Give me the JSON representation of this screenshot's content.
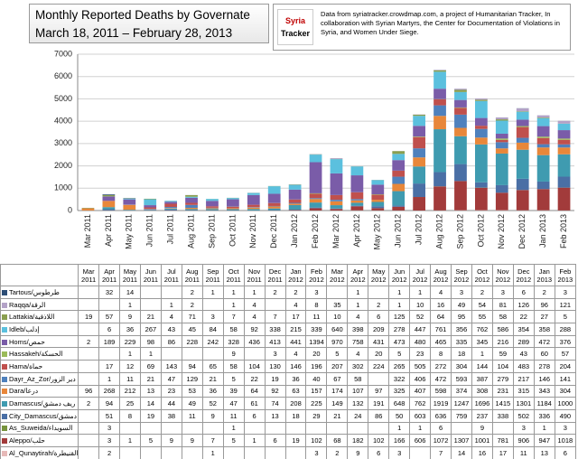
{
  "chart_data": {
    "type": "bar",
    "stacked": true,
    "title": "Monthly Reported Deaths by Governate",
    "subtitle": "March 18, 2011 – February 28, 2013",
    "source": "Data from syriatracker.crowdmap.com, a project of Humanitarian Tracker, In collaboration with Syrian Martyrs, the Center for Documentation of Violations in Syria, and Women Under Siege.",
    "logo": [
      "Syria",
      "Tracker"
    ],
    "categories": [
      "Mar 2011",
      "Apr 2011",
      "May 2011",
      "Jun 2011",
      "Jul 2011",
      "Aug 2011",
      "Sep 2011",
      "Oct 2011",
      "Nov 2011",
      "Dec 2011",
      "Jan 2012",
      "Feb 2012",
      "Mar 2012",
      "Apr 2012",
      "May 2012",
      "Jun 2012",
      "Jul 2012",
      "Aug 2012",
      "Sep 2012",
      "Oct 2012",
      "Nov 2012",
      "Dec 2012",
      "Jan 2013",
      "Feb 2013"
    ],
    "ylim": [
      0,
      7000
    ],
    "yticks": [
      0,
      1000,
      2000,
      3000,
      4000,
      5000,
      6000,
      7000
    ],
    "grid": true,
    "series": [
      {
        "name": "Tartous/طرطوس",
        "color": "#2c4d75",
        "values": [
          null,
          32,
          14,
          null,
          null,
          2,
          1,
          1,
          1,
          2,
          2,
          3,
          null,
          1,
          null,
          1,
          1,
          4,
          3,
          2,
          3,
          6,
          2,
          3
        ]
      },
      {
        "name": "Raqqa/الرقة",
        "color": "#b3a2c7",
        "values": [
          null,
          null,
          1,
          null,
          1,
          2,
          null,
          1,
          4,
          null,
          4,
          8,
          35,
          1,
          2,
          1,
          10,
          16,
          49,
          54,
          81,
          126,
          96,
          121
        ]
      },
      {
        "name": "Lattakia/اللاذقية",
        "color": "#8a9f4f",
        "values": [
          19,
          57,
          9,
          21,
          4,
          71,
          3,
          7,
          4,
          7,
          17,
          11,
          10,
          4,
          6,
          125,
          52,
          64,
          95,
          55,
          58,
          22,
          27,
          5
        ]
      },
      {
        "name": "Idleb/إدلب",
        "color": "#5bc0de",
        "values": [
          null,
          6,
          36,
          267,
          43,
          45,
          84,
          58,
          92,
          338,
          215,
          339,
          640,
          398,
          209,
          278,
          447,
          761,
          356,
          762,
          586,
          354,
          358,
          288
        ]
      },
      {
        "name": "Homs/حمص",
        "color": "#7a5ca8",
        "values": [
          2,
          189,
          229,
          98,
          86,
          228,
          242,
          328,
          436,
          413,
          441,
          1394,
          970,
          758,
          431,
          473,
          480,
          465,
          335,
          345,
          216,
          289,
          472,
          376
        ]
      },
      {
        "name": "Hassakeh/الحسكة",
        "color": "#9bbb59",
        "values": [
          null,
          null,
          1,
          1,
          null,
          null,
          null,
          9,
          null,
          3,
          4,
          20,
          5,
          4,
          20,
          5,
          23,
          8,
          18,
          1,
          59,
          43,
          60,
          57
        ]
      },
      {
        "name": "Hama/حماة",
        "color": "#c0504d",
        "values": [
          null,
          17,
          12,
          69,
          143,
          94,
          65,
          58,
          104,
          130,
          146,
          196,
          207,
          302,
          224,
          265,
          505,
          272,
          304,
          144,
          104,
          483,
          278,
          204
        ]
      },
      {
        "name": "Dayr_Az_Zor/دير الزور",
        "color": "#4f81bd",
        "values": [
          null,
          1,
          11,
          21,
          47,
          129,
          21,
          5,
          22,
          19,
          36,
          40,
          67,
          58,
          null,
          322,
          406,
          472,
          593,
          387,
          279,
          217,
          146,
          141
        ]
      },
      {
        "name": "Dara/درعا",
        "color": "#e8873a",
        "values": [
          96,
          268,
          212,
          13,
          23,
          53,
          36,
          39,
          64,
          92,
          63,
          157,
          174,
          107,
          97,
          325,
          407,
          598,
          374,
          308,
          231,
          315,
          343,
          304
        ]
      },
      {
        "name": "Damascus/ريف دمشق",
        "color": "#3f9bb0",
        "values": [
          2,
          94,
          25,
          14,
          44,
          49,
          52,
          47,
          61,
          74,
          208,
          225,
          149,
          132,
          191,
          648,
          762,
          1919,
          1247,
          1696,
          1415,
          1301,
          1184,
          1000
        ]
      },
      {
        "name": "City_Damascus/دمشق",
        "color": "#4a6fa5",
        "values": [
          null,
          51,
          8,
          19,
          38,
          11,
          9,
          11,
          6,
          13,
          18,
          29,
          21,
          24,
          86,
          50,
          603,
          636,
          759,
          237,
          338,
          502,
          336,
          490
        ]
      },
      {
        "name": "As_Suweida/السويداء",
        "color": "#77933c",
        "values": [
          null,
          3,
          null,
          null,
          null,
          null,
          null,
          1,
          null,
          null,
          null,
          null,
          null,
          null,
          null,
          1,
          1,
          6,
          null,
          9,
          null,
          3,
          1,
          3
        ]
      },
      {
        "name": "Aleppo/حلب",
        "color": "#a23b3b",
        "values": [
          null,
          3,
          1,
          5,
          9,
          9,
          7,
          5,
          1,
          6,
          19,
          102,
          68,
          182,
          102,
          166,
          606,
          1072,
          1307,
          1001,
          781,
          906,
          947,
          1018
        ]
      },
      {
        "name": "Al_Qunaytirah/القنيطرة",
        "color": "#e6b9b8",
        "values": [
          null,
          2,
          null,
          null,
          null,
          null,
          1,
          null,
          null,
          null,
          null,
          3,
          2,
          9,
          6,
          3,
          null,
          7,
          14,
          16,
          17,
          11,
          13,
          6
        ]
      }
    ]
  }
}
